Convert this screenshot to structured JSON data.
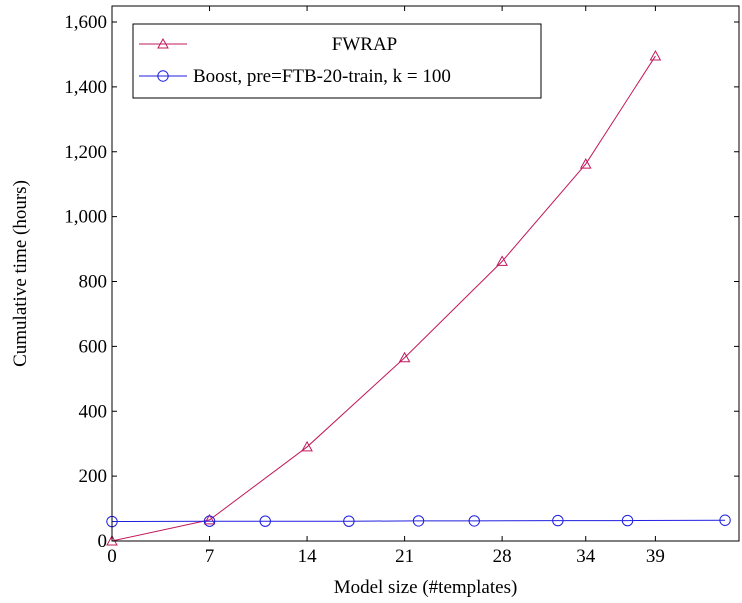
{
  "chart_data": {
    "type": "line",
    "title": "",
    "xlabel": "Model size (#templates)",
    "ylabel": "Cumulative time (hours)",
    "xlim": [
      0,
      45
    ],
    "ylim": [
      0,
      1600
    ],
    "xticks": [
      0,
      7,
      14,
      21,
      28,
      34,
      39
    ],
    "yticks": [
      0,
      200,
      400,
      600,
      800,
      1000,
      1200,
      1400,
      1600
    ],
    "ytick_labels": [
      "0",
      "200",
      "400",
      "600",
      "800",
      "1,000",
      "1,200",
      "1,400",
      "1,600"
    ],
    "grid": false,
    "legend_position": "top-left",
    "series": [
      {
        "name": "FWRAP",
        "color": "#c2185b",
        "marker": "triangle",
        "x": [
          0,
          7,
          14,
          21,
          28,
          34,
          39
        ],
        "y": [
          0,
          65,
          290,
          565,
          862,
          1162,
          1495
        ]
      },
      {
        "name": "Boost, pre=FTB-20-train, k = 100",
        "color": "#1f1fe0",
        "marker": "circle",
        "x": [
          0,
          7,
          11,
          17,
          22,
          26,
          32,
          37,
          44
        ],
        "y": [
          60,
          61,
          61,
          61,
          62,
          62,
          63,
          63,
          64
        ]
      }
    ]
  }
}
